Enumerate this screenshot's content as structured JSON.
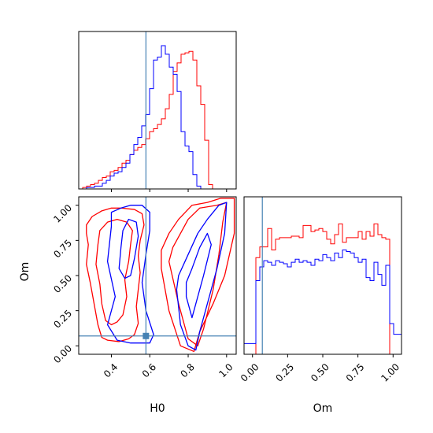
{
  "figure": {
    "type": "corner-plot"
  },
  "chart_data": [
    {
      "type": "histogram",
      "panel": "H0-marginal",
      "xlim": [
        0.23,
        1.05
      ],
      "bin_edges": [
        0.23,
        0.2505,
        0.271,
        0.2915,
        0.312,
        0.3325,
        0.353,
        0.3735,
        0.394,
        0.4145,
        0.435,
        0.4555,
        0.476,
        0.4965,
        0.517,
        0.5375,
        0.558,
        0.5785,
        0.599,
        0.6195,
        0.64,
        0.6605,
        0.681,
        0.7015,
        0.722,
        0.7425,
        0.763,
        0.7835,
        0.804,
        0.8245,
        0.845,
        0.8655,
        0.886,
        0.9065,
        0.927,
        0.9475,
        0.968,
        0.9885,
        1.009,
        1.0295,
        1.05
      ],
      "series": [
        {
          "color": "#ff0000",
          "values": [
            0,
            0.01,
            0.02,
            0.03,
            0.04,
            0.06,
            0.08,
            0.09,
            0.12,
            0.13,
            0.15,
            0.18,
            0.2,
            0.24,
            0.27,
            0.29,
            0.31,
            0.35,
            0.4,
            0.42,
            0.45,
            0.49,
            0.56,
            0.66,
            0.82,
            0.88,
            0.94,
            0.95,
            0.96,
            0.9,
            0.72,
            0.59,
            0.34,
            0.03,
            0,
            0,
            0,
            0,
            0,
            0
          ]
        },
        {
          "color": "#0000ff",
          "values": [
            0,
            0,
            0.01,
            0.01,
            0.02,
            0.02,
            0.04,
            0.06,
            0.09,
            0.11,
            0.12,
            0.15,
            0.18,
            0.24,
            0.31,
            0.36,
            0.44,
            0.52,
            0.7,
            0.9,
            0.92,
            1.0,
            0.94,
            0.85,
            0.8,
            0.68,
            0.4,
            0.3,
            0.26,
            0.1,
            0.02,
            0,
            0,
            0,
            0,
            0,
            0,
            0,
            0,
            0
          ]
        }
      ],
      "truth_line": 0.58,
      "xticks": [
        0.4,
        0.6,
        0.8,
        1.0
      ]
    },
    {
      "type": "contour",
      "panel": "H0-Om-joint",
      "xlabel": "H0",
      "ylabel": "Om",
      "xlim": [
        0.23,
        1.05
      ],
      "ylim": [
        -0.06,
        1.06
      ],
      "xticks": [
        "0.4",
        "0.6",
        "0.8",
        "1.0"
      ],
      "yticks": [
        "0.00",
        "0.25",
        "0.50",
        "0.75",
        "1.00"
      ],
      "truth_point": {
        "x": 0.58,
        "y": 0.07
      },
      "series": [
        {
          "color": "#ff0000",
          "contours": [
            [
              [
                0.28,
                0.72
              ],
              [
                0.27,
                0.58
              ],
              [
                0.29,
                0.45
              ],
              [
                0.31,
                0.3
              ],
              [
                0.33,
                0.15
              ],
              [
                0.35,
                0.06
              ],
              [
                0.38,
                0.04
              ],
              [
                0.44,
                0.03
              ],
              [
                0.49,
                0.05
              ],
              [
                0.52,
                0.08
              ],
              [
                0.54,
                0.16
              ],
              [
                0.53,
                0.28
              ],
              [
                0.54,
                0.4
              ],
              [
                0.55,
                0.52
              ],
              [
                0.54,
                0.64
              ],
              [
                0.55,
                0.75
              ],
              [
                0.57,
                0.86
              ],
              [
                0.56,
                0.94
              ],
              [
                0.52,
                0.97
              ],
              [
                0.45,
                0.98
              ],
              [
                0.4,
                0.98
              ],
              [
                0.35,
                0.96
              ],
              [
                0.3,
                0.92
              ],
              [
                0.27,
                0.86
              ],
              [
                0.27,
                0.8
              ],
              [
                0.28,
                0.72
              ]
            ],
            [
              [
                0.33,
                0.72
              ],
              [
                0.32,
                0.58
              ],
              [
                0.34,
                0.44
              ],
              [
                0.35,
                0.3
              ],
              [
                0.37,
                0.18
              ],
              [
                0.4,
                0.15
              ],
              [
                0.43,
                0.17
              ],
              [
                0.46,
                0.22
              ],
              [
                0.48,
                0.35
              ],
              [
                0.47,
                0.47
              ],
              [
                0.49,
                0.6
              ],
              [
                0.5,
                0.72
              ],
              [
                0.51,
                0.82
              ],
              [
                0.48,
                0.88
              ],
              [
                0.43,
                0.9
              ],
              [
                0.38,
                0.88
              ],
              [
                0.34,
                0.82
              ],
              [
                0.33,
                0.72
              ]
            ],
            [
              [
                0.7,
                0.6
              ],
              [
                0.75,
                0.3
              ],
              [
                0.8,
                0.05
              ],
              [
                0.85,
                0.0
              ],
              [
                0.88,
                0.12
              ],
              [
                0.93,
                0.4
              ],
              [
                0.96,
                0.65
              ],
              [
                0.98,
                0.88
              ],
              [
                1.0,
                1.02
              ],
              [
                0.95,
                1.0
              ],
              [
                0.86,
                0.98
              ],
              [
                0.8,
                0.9
              ],
              [
                0.76,
                0.8
              ],
              [
                0.72,
                0.7
              ],
              [
                0.7,
                0.6
              ]
            ],
            [
              [
                0.66,
                0.55
              ],
              [
                0.7,
                0.25
              ],
              [
                0.76,
                0.0
              ],
              [
                0.83,
                -0.04
              ],
              [
                0.86,
                0.1
              ],
              [
                0.93,
                0.3
              ],
              [
                0.99,
                0.5
              ],
              [
                1.04,
                0.8
              ],
              [
                1.04,
                1.05
              ],
              [
                0.97,
                1.05
              ],
              [
                0.9,
                1.02
              ],
              [
                0.82,
                1.0
              ],
              [
                0.75,
                0.9
              ],
              [
                0.7,
                0.8
              ],
              [
                0.66,
                0.68
              ],
              [
                0.66,
                0.55
              ]
            ]
          ]
        },
        {
          "color": "#0000ff",
          "contours": [
            [
              [
                0.4,
                0.85
              ],
              [
                0.38,
                0.6
              ],
              [
                0.42,
                0.35
              ],
              [
                0.38,
                0.15
              ],
              [
                0.43,
                0.04
              ],
              [
                0.5,
                0.02
              ],
              [
                0.55,
                0.02
              ],
              [
                0.6,
                0.02
              ],
              [
                0.62,
                0.08
              ],
              [
                0.58,
                0.25
              ],
              [
                0.56,
                0.45
              ],
              [
                0.58,
                0.65
              ],
              [
                0.6,
                0.82
              ],
              [
                0.6,
                0.95
              ],
              [
                0.56,
                1.0
              ],
              [
                0.5,
                1.0
              ],
              [
                0.45,
                0.98
              ],
              [
                0.4,
                0.95
              ],
              [
                0.4,
                0.85
              ]
            ],
            [
              [
                0.45,
                0.7
              ],
              [
                0.44,
                0.55
              ],
              [
                0.47,
                0.48
              ],
              [
                0.5,
                0.5
              ],
              [
                0.52,
                0.62
              ],
              [
                0.54,
                0.78
              ],
              [
                0.53,
                0.88
              ],
              [
                0.49,
                0.9
              ],
              [
                0.46,
                0.82
              ],
              [
                0.45,
                0.7
              ]
            ],
            [
              [
                0.74,
                0.4
              ],
              [
                0.76,
                0.15
              ],
              [
                0.8,
                0.0
              ],
              [
                0.84,
                -0.03
              ],
              [
                0.86,
                0.1
              ],
              [
                0.9,
                0.3
              ],
              [
                0.95,
                0.55
              ],
              [
                0.99,
                0.8
              ],
              [
                1.0,
                1.02
              ],
              [
                0.96,
                1.0
              ],
              [
                0.9,
                0.9
              ],
              [
                0.85,
                0.8
              ],
              [
                0.79,
                0.62
              ],
              [
                0.75,
                0.5
              ],
              [
                0.74,
                0.4
              ]
            ],
            [
              [
                0.79,
                0.35
              ],
              [
                0.82,
                0.2
              ],
              [
                0.84,
                0.3
              ],
              [
                0.88,
                0.5
              ],
              [
                0.92,
                0.72
              ],
              [
                0.9,
                0.8
              ],
              [
                0.86,
                0.7
              ],
              [
                0.82,
                0.55
              ],
              [
                0.79,
                0.45
              ],
              [
                0.79,
                0.35
              ]
            ]
          ]
        }
      ]
    },
    {
      "type": "histogram",
      "panel": "Om-marginal",
      "xlabel": "Om",
      "xlim": [
        -0.06,
        1.06
      ],
      "bin_edges": [
        -0.06,
        -0.032,
        -0.004,
        0.024,
        0.052,
        0.08,
        0.108,
        0.136,
        0.164,
        0.192,
        0.22,
        0.248,
        0.276,
        0.304,
        0.332,
        0.36,
        0.388,
        0.416,
        0.444,
        0.472,
        0.5,
        0.528,
        0.556,
        0.584,
        0.612,
        0.64,
        0.668,
        0.696,
        0.724,
        0.752,
        0.78,
        0.808,
        0.836,
        0.864,
        0.892,
        0.92,
        0.948,
        0.976,
        1.004,
        1.032,
        1.06
      ],
      "series": [
        {
          "color": "#ff0000",
          "values": [
            0,
            0,
            0,
            0.63,
            0.7,
            0.7,
            0.82,
            0.68,
            0.75,
            0.76,
            0.76,
            0.76,
            0.77,
            0.77,
            0.76,
            0.84,
            0.84,
            0.8,
            0.81,
            0.82,
            0.8,
            0.75,
            0.72,
            0.78,
            0.85,
            0.73,
            0.76,
            0.76,
            0.76,
            0.8,
            0.75,
            0.8,
            0.77,
            0.85,
            0.78,
            0.76,
            0.75,
            0,
            0,
            0
          ]
        },
        {
          "color": "#0000ff",
          "values": [
            0.07,
            0.07,
            0.07,
            0.48,
            0.57,
            0.61,
            0.6,
            0.58,
            0.61,
            0.6,
            0.59,
            0.57,
            0.6,
            0.62,
            0.6,
            0.61,
            0.6,
            0.58,
            0.62,
            0.61,
            0.65,
            0.63,
            0.61,
            0.66,
            0.63,
            0.68,
            0.67,
            0.66,
            0.63,
            0.6,
            0.62,
            0.5,
            0.48,
            0.6,
            0.52,
            0.45,
            0.58,
            0.2,
            0.13,
            0.13
          ]
        }
      ],
      "truth_line": 0.07,
      "xticks": [
        "0.00",
        "0.25",
        "0.50",
        "0.75",
        "1.00"
      ]
    }
  ]
}
